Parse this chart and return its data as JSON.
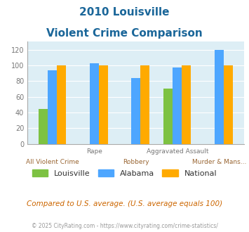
{
  "title_line1": "2010 Louisville",
  "title_line2": "Violent Crime Comparison",
  "categories": [
    "All Violent Crime",
    "Rape",
    "Robbery",
    "Aggravated Assault",
    "Murder & Mans..."
  ],
  "louisville": [
    44,
    0,
    0,
    70,
    0
  ],
  "alabama": [
    94,
    103,
    84,
    97,
    120
  ],
  "national": [
    100,
    100,
    100,
    100,
    100
  ],
  "louisville_color": "#7dc242",
  "alabama_color": "#4da6ff",
  "national_color": "#ffaa00",
  "ylim": [
    0,
    130
  ],
  "yticks": [
    0,
    20,
    40,
    60,
    80,
    100,
    120
  ],
  "plot_bg_color": "#ddeef5",
  "title_color": "#1a6699",
  "upper_label_color": "#777777",
  "lower_label_color": "#996633",
  "footer_text": "Compared to U.S. average. (U.S. average equals 100)",
  "copyright_text": "© 2025 CityRating.com - https://www.cityrating.com/crime-statistics/",
  "footer_color": "#cc6600",
  "copyright_color": "#999999",
  "bar_width": 0.22,
  "upper_labels": [
    "",
    "Rape",
    "",
    "Aggravated Assault",
    ""
  ],
  "lower_labels": [
    "All Violent Crime",
    "",
    "Robbery",
    "",
    "Murder & Mans..."
  ]
}
